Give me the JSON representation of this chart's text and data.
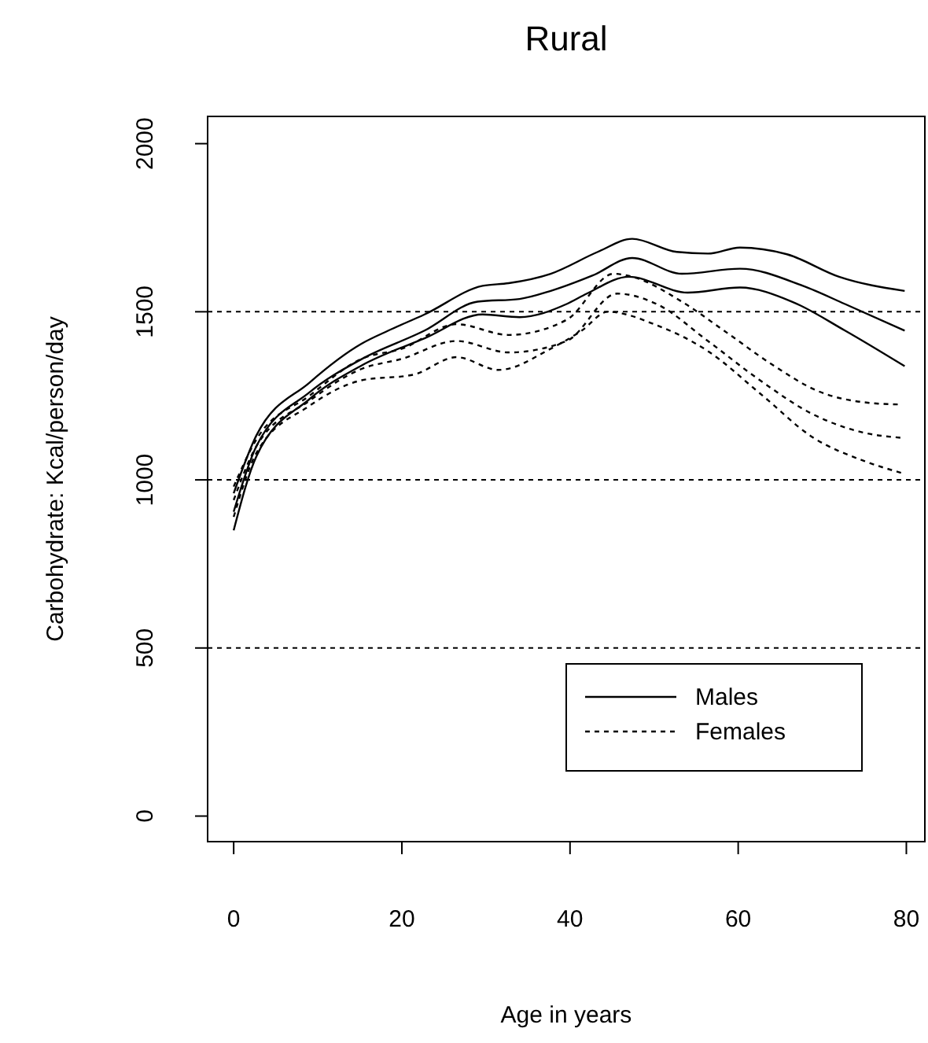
{
  "chart_data": {
    "type": "line",
    "title": "Rural",
    "xlabel": "Age in years",
    "ylabel": "Carbohydrate: Kcal/person/day",
    "xlim": [
      -3.1,
      82.2
    ],
    "ylim": [
      -76,
      2081
    ],
    "xticks": [
      0,
      20,
      40,
      60,
      80
    ],
    "yticks": [
      0,
      500,
      1000,
      1500,
      2000
    ],
    "grid": false,
    "legend": "bottom right",
    "ref_lines": [
      {
        "axis": "y",
        "value": 500,
        "color": "#000000",
        "line_style": "dotted"
      },
      {
        "axis": "y",
        "value": 1000,
        "color": "#000000",
        "line_style": "dotted"
      },
      {
        "axis": "y",
        "value": 1500,
        "color": "#000000",
        "line_style": "dotted"
      }
    ],
    "series": [
      {
        "color": "#000000",
        "line_style": "solid",
        "x": [
          0,
          2.7,
          9,
          15.2,
          18.4,
          22.7,
          29.6,
          32.7,
          37.7,
          43.3,
          47.4,
          52.7,
          56.4,
          60.2,
          65.8,
          72,
          79.8
        ],
        "values": [
          960,
          1132,
          1289,
          1405,
          1444,
          1492,
          1577,
          1585,
          1613,
          1678,
          1717,
          1678,
          1673,
          1691,
          1671,
          1604,
          1562
        ]
      },
      {
        "name": "Males",
        "color": "#000000",
        "line_style": "solid",
        "x": [
          0,
          2.7,
          9,
          15.2,
          22.7,
          29,
          34,
          37.7,
          42.7,
          47.4,
          53.3,
          60.2,
          67.7,
          72.7,
          79.8
        ],
        "values": [
          905,
          1100,
          1260,
          1359,
          1444,
          1530,
          1538,
          1562,
          1608,
          1660,
          1613,
          1628,
          1577,
          1523,
          1444
        ]
      },
      {
        "color": "#000000",
        "line_style": "solid",
        "x": [
          0,
          2.7,
          9,
          15.2,
          22.7,
          29.6,
          34,
          39.6,
          42,
          47,
          54,
          60.2,
          66.4,
          72.7,
          79.8
        ],
        "values": [
          850,
          1070,
          1240,
          1340,
          1421,
          1492,
          1484,
          1523,
          1554,
          1604,
          1557,
          1572,
          1530,
          1444,
          1338
        ]
      },
      {
        "color": "#000000",
        "line_style": "dotted",
        "x": [
          0,
          2.7,
          9,
          15.2,
          20,
          26.5,
          32.7,
          39.6,
          45.2,
          47.4,
          53.3,
          58.3,
          64.4,
          69.4,
          75.6,
          79.5
        ],
        "values": [
          980,
          1120,
          1250,
          1360,
          1390,
          1463,
          1431,
          1476,
          1613,
          1604,
          1530,
          1444,
          1337,
          1265,
          1229,
          1224
        ]
      },
      {
        "name": "Females",
        "color": "#000000",
        "line_style": "dotted",
        "x": [
          0,
          2.7,
          9,
          15.2,
          20,
          26.5,
          32.7,
          39.6,
          45.6,
          50.3,
          56.4,
          62.6,
          68.9,
          75,
          79.5
        ],
        "values": [
          940,
          1100,
          1235,
          1330,
          1360,
          1413,
          1379,
          1413,
          1554,
          1523,
          1413,
          1296,
          1195,
          1140,
          1125
        ]
      },
      {
        "color": "#000000",
        "line_style": "dotted",
        "x": [
          0,
          2.7,
          9,
          15.2,
          21.4,
          26.5,
          31.5,
          37.7,
          41.4,
          44.5,
          50.3,
          56.4,
          62.6,
          68.9,
          75,
          79.5
        ],
        "values": [
          890,
          1080,
          1220,
          1296,
          1313,
          1365,
          1327,
          1390,
          1444,
          1500,
          1460,
          1383,
          1257,
          1126,
          1056,
          1020
        ]
      }
    ]
  }
}
